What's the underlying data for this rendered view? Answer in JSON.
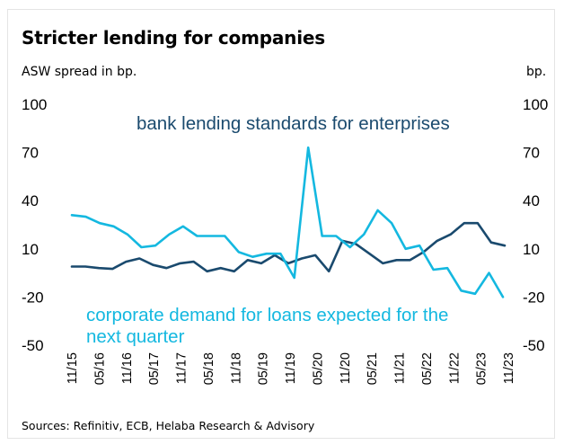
{
  "title": "Stricter lending for companies",
  "left_unit": "ASW spread in bp.",
  "right_unit": "bp.",
  "source": "Sources: Refinitiv, ECB, Helaba Research & Advisory",
  "colors": {
    "bank_series": "#1a4a6e",
    "demand_series": "#14b8e0",
    "frame": "#e4e4e4"
  },
  "chart_data": {
    "type": "line",
    "title": "Stricter lending for companies",
    "ylabel": "ASW spread in bp.",
    "ylabel_right": "bp.",
    "ylim": [
      -50,
      100
    ],
    "y_ticks": [
      "100",
      "70",
      "40",
      "10",
      "-20",
      "-50"
    ],
    "x_tick_labels": [
      "11/15",
      "05/16",
      "11/16",
      "05/17",
      "11/17",
      "05/18",
      "11/18",
      "05/19",
      "11/19",
      "05/20",
      "11/20",
      "05/21",
      "11/21",
      "05/22",
      "11/22",
      "05/23",
      "11/23"
    ],
    "annotations": {
      "bank": "bank lending standards for enterprises",
      "demand_line1": "corporate demand for loans expected for the",
      "demand_line2": "next quarter"
    },
    "grid": false,
    "series": [
      {
        "key": "bank",
        "values": [
          -1,
          -1,
          -2,
          -2.5,
          2,
          4,
          0,
          -2,
          1,
          2,
          -4,
          -2,
          -4,
          3,
          1,
          6,
          1,
          4,
          6,
          -4,
          15,
          13,
          7,
          1,
          3,
          3,
          8,
          15,
          19,
          26,
          26,
          14,
          12
        ]
      },
      {
        "key": "demand",
        "values": [
          31,
          30,
          26,
          24,
          19,
          11,
          12,
          19,
          24,
          18,
          18,
          18,
          8,
          5,
          7,
          7,
          -8,
          73,
          18,
          18,
          11,
          19,
          34,
          26,
          10,
          12,
          -3,
          -2,
          -16,
          -18,
          -5,
          -20
        ]
      }
    ]
  }
}
